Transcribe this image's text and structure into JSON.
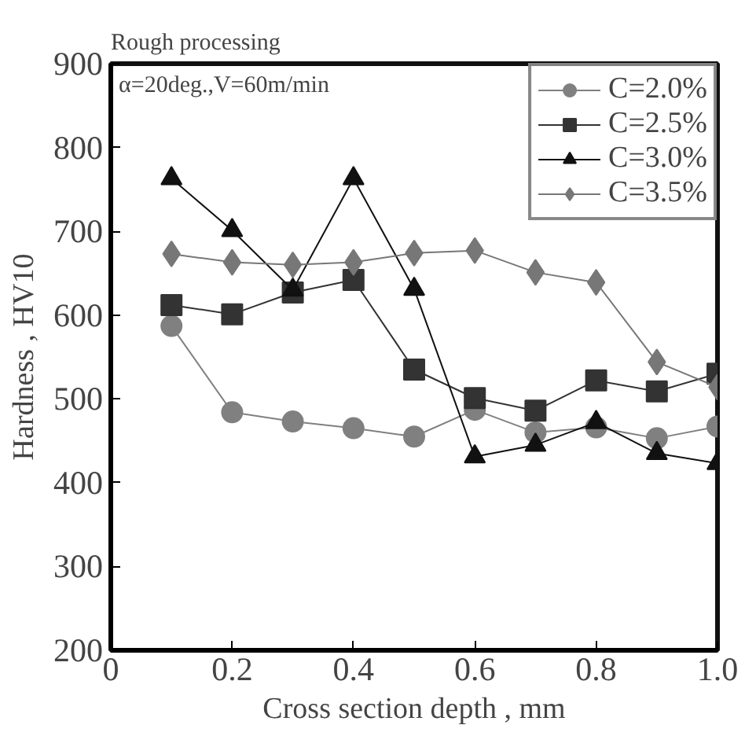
{
  "chart_data": {
    "type": "line",
    "title": "Rough processing",
    "xlabel": "Cross section depth , mm",
    "ylabel": "Hardness , HV10",
    "annotations": [
      "α=20deg.,V=60m/min"
    ],
    "x": [
      0.1,
      0.2,
      0.3,
      0.4,
      0.5,
      0.6,
      0.7,
      0.8,
      0.9,
      1.0
    ],
    "xlim": [
      0,
      1.0
    ],
    "xticks": [
      0,
      0.2,
      0.4,
      0.6,
      0.8,
      {
        "value": 1.0,
        "label": "1.0"
      }
    ],
    "ylim": [
      200,
      900
    ],
    "yticks": [
      200,
      300,
      400,
      500,
      600,
      700,
      800,
      900
    ],
    "grid": false,
    "legend": "top right",
    "series": [
      {
        "name": "C=2.0%",
        "color": "#808080",
        "marker": "circle",
        "values": [
          587,
          484,
          473,
          465,
          455,
          487,
          460,
          466,
          453,
          467
        ]
      },
      {
        "name": "C=2.5%",
        "color": "#333333",
        "marker": "square",
        "values": [
          612,
          601,
          627,
          642,
          535,
          501,
          486,
          522,
          509,
          530
        ]
      },
      {
        "name": "C=3.0%",
        "color": "#111111",
        "marker": "triangle",
        "values": [
          763,
          701,
          630,
          763,
          631,
          431,
          445,
          472,
          435,
          423
        ]
      },
      {
        "name": "C=3.5%",
        "color": "#777777",
        "marker": "diamond",
        "values": [
          673,
          663,
          660,
          663,
          674,
          677,
          651,
          639,
          544,
          514
        ]
      }
    ]
  }
}
